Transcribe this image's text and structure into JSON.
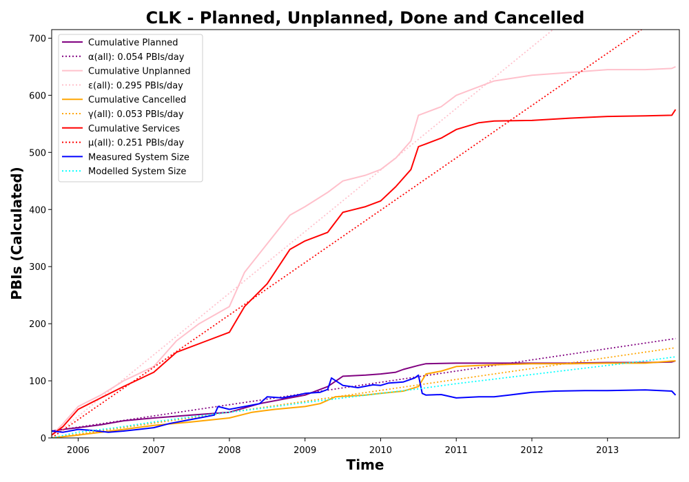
{
  "chart_data": {
    "type": "line",
    "title": "CLK - Planned, Unplanned, Done  and Cancelled",
    "xlabel": "Time",
    "ylabel": "PBIs (Calculated)",
    "xlim": [
      2005.65,
      2013.95
    ],
    "ylim": [
      0,
      715
    ],
    "x_ticks": [
      2006,
      2007,
      2008,
      2009,
      2010,
      2011,
      2012,
      2013
    ],
    "x_tick_labels": [
      "2006",
      "2007",
      "2008",
      "2009",
      "2010",
      "2011",
      "2012",
      "2013"
    ],
    "y_ticks": [
      0,
      100,
      200,
      300,
      400,
      500,
      600,
      700
    ],
    "y_tick_labels": [
      "0",
      "100",
      "200",
      "300",
      "400",
      "500",
      "600",
      "700"
    ],
    "grid": false,
    "legend_position": "top-left",
    "series": [
      {
        "name": "Cumulative Planned",
        "color": "#800080",
        "style": "solid",
        "x": [
          2005.65,
          2005.8,
          2006.0,
          2006.3,
          2006.6,
          2007.0,
          2007.5,
          2008.0,
          2008.4,
          2008.8,
          2009.0,
          2009.3,
          2009.5,
          2009.8,
          2010.0,
          2010.2,
          2010.3,
          2010.5,
          2010.6,
          2011.0,
          2011.5,
          2012.0,
          2012.5,
          2013.0,
          2013.5,
          2013.85,
          2013.9
        ],
        "y": [
          12,
          15,
          18,
          23,
          30,
          35,
          40,
          45,
          60,
          70,
          75,
          90,
          108,
          110,
          112,
          115,
          120,
          127,
          130,
          131,
          131,
          131,
          131,
          132,
          132,
          133,
          135
        ]
      },
      {
        "name": "α(all): 0.054 PBIs/day",
        "color": "#800080",
        "style": "dotted",
        "x": [
          2005.65,
          2013.9
        ],
        "y": [
          12,
          174
        ]
      },
      {
        "name": "Cumulative Unplanned",
        "color": "#ffc0cb",
        "style": "solid",
        "x": [
          2005.65,
          2005.8,
          2006.0,
          2006.3,
          2006.6,
          2007.0,
          2007.3,
          2007.6,
          2008.0,
          2008.2,
          2008.5,
          2008.8,
          2009.0,
          2009.3,
          2009.5,
          2009.8,
          2010.0,
          2010.2,
          2010.4,
          2010.5,
          2010.6,
          2010.8,
          2011.0,
          2011.3,
          2011.5,
          2012.0,
          2012.5,
          2013.0,
          2013.5,
          2013.85,
          2013.9
        ],
        "y": [
          5,
          25,
          55,
          75,
          100,
          125,
          170,
          200,
          230,
          290,
          340,
          390,
          405,
          430,
          450,
          460,
          470,
          490,
          520,
          565,
          570,
          580,
          600,
          615,
          625,
          635,
          640,
          645,
          645,
          647,
          650
        ]
      },
      {
        "name": "ε(all): 0.295 PBIs/day",
        "color": "#ffc0cb",
        "style": "dotted",
        "x": [
          2005.65,
          2012.28
        ],
        "y": [
          0,
          715
        ]
      },
      {
        "name": "Cumulative Cancelled",
        "color": "#ffa500",
        "style": "solid",
        "x": [
          2005.65,
          2005.8,
          2006.0,
          2006.3,
          2006.6,
          2007.0,
          2007.5,
          2008.0,
          2008.3,
          2008.6,
          2009.0,
          2009.2,
          2009.4,
          2009.8,
          2010.0,
          2010.3,
          2010.5,
          2010.6,
          2010.8,
          2011.0,
          2011.5,
          2012.0,
          2012.5,
          2013.0,
          2013.5,
          2013.9
        ],
        "y": [
          0,
          2,
          5,
          10,
          15,
          22,
          28,
          35,
          45,
          50,
          55,
          60,
          72,
          75,
          78,
          82,
          90,
          112,
          117,
          125,
          128,
          130,
          130,
          131,
          131,
          135
        ]
      },
      {
        "name": "γ(all): 0.053 PBIs/day",
        "color": "#ffa500",
        "style": "dotted",
        "x": [
          2005.65,
          2013.9
        ],
        "y": [
          0,
          158
        ]
      },
      {
        "name": "Cumulative Services",
        "color": "#ff0000",
        "style": "solid",
        "x": [
          2005.65,
          2005.8,
          2006.0,
          2006.3,
          2006.6,
          2007.0,
          2007.3,
          2007.7,
          2008.0,
          2008.2,
          2008.5,
          2008.8,
          2009.0,
          2009.3,
          2009.5,
          2009.8,
          2010.0,
          2010.2,
          2010.4,
          2010.5,
          2010.6,
          2010.8,
          2011.0,
          2011.3,
          2011.5,
          2012.0,
          2012.5,
          2013.0,
          2013.5,
          2013.85,
          2013.9
        ],
        "y": [
          5,
          20,
          50,
          70,
          90,
          115,
          150,
          170,
          185,
          230,
          270,
          330,
          345,
          360,
          395,
          405,
          415,
          440,
          470,
          510,
          515,
          525,
          540,
          552,
          555,
          556,
          560,
          563,
          564,
          565,
          575
        ]
      },
      {
        "name": "μ(all): 0.251 PBIs/day",
        "color": "#ff0000",
        "style": "dotted",
        "x": [
          2005.65,
          2013.45
        ],
        "y": [
          0,
          715
        ]
      },
      {
        "name": "Measured System Size",
        "color": "#0000ff",
        "style": "solid",
        "x": [
          2005.65,
          2005.8,
          2006.0,
          2006.2,
          2006.4,
          2006.6,
          2006.8,
          2007.0,
          2007.2,
          2007.4,
          2007.6,
          2007.8,
          2007.85,
          2008.0,
          2008.2,
          2008.4,
          2008.5,
          2008.7,
          2008.9,
          2009.0,
          2009.2,
          2009.3,
          2009.35,
          2009.5,
          2009.7,
          2009.9,
          2010.0,
          2010.1,
          2010.3,
          2010.45,
          2010.5,
          2010.55,
          2010.6,
          2010.8,
          2011.0,
          2011.3,
          2011.5,
          2011.7,
          2012.0,
          2012.3,
          2012.7,
          2013.0,
          2013.5,
          2013.85,
          2013.9
        ],
        "y": [
          12,
          10,
          15,
          13,
          10,
          12,
          15,
          18,
          25,
          30,
          35,
          40,
          55,
          50,
          55,
          60,
          72,
          70,
          75,
          78,
          80,
          85,
          105,
          92,
          88,
          93,
          92,
          96,
          98,
          105,
          110,
          78,
          75,
          76,
          70,
          72,
          72,
          75,
          80,
          82,
          83,
          83,
          84,
          82,
          75
        ]
      },
      {
        "name": "Modelled System Size",
        "color": "#00ffff",
        "style": "dotted",
        "x": [
          2005.65,
          2006.0,
          2006.5,
          2007.0,
          2007.5,
          2008.0,
          2008.5,
          2009.0,
          2009.5,
          2010.0,
          2010.5,
          2011.0,
          2011.5,
          2012.0,
          2012.5,
          2013.0,
          2013.5,
          2013.9
        ],
        "y": [
          0,
          10,
          18,
          28,
          37,
          45,
          53,
          62,
          70,
          78,
          86,
          95,
          103,
          111,
          119,
          127,
          135,
          142
        ]
      }
    ]
  }
}
